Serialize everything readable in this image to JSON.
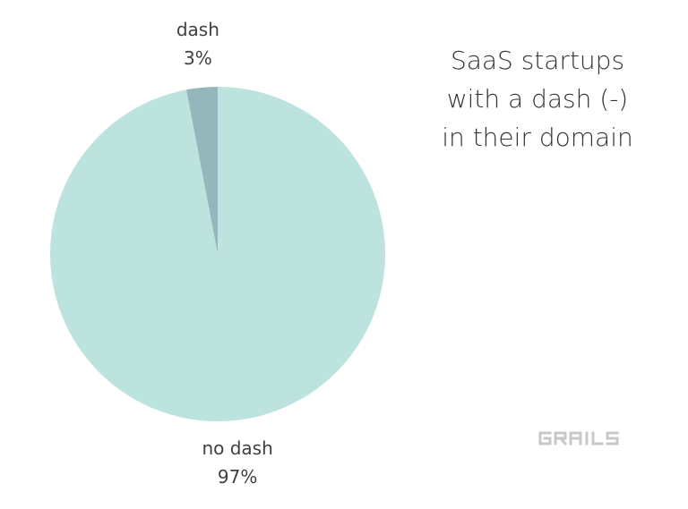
{
  "chart_data": {
    "type": "pie",
    "title_lines": [
      "SaaS startups",
      "with a dash (-)",
      "in their domain"
    ],
    "slices": [
      {
        "label": "dash",
        "value": 3,
        "percent_label": "3%",
        "color": "#95b7bb"
      },
      {
        "label": "no dash",
        "value": 97,
        "percent_label": "97%",
        "color": "#bde3df"
      }
    ],
    "start_angle_deg": 0,
    "direction": "counterclockwise"
  },
  "branding": {
    "logo_text": "GRAILS",
    "logo_color": "#c8c8c8"
  }
}
